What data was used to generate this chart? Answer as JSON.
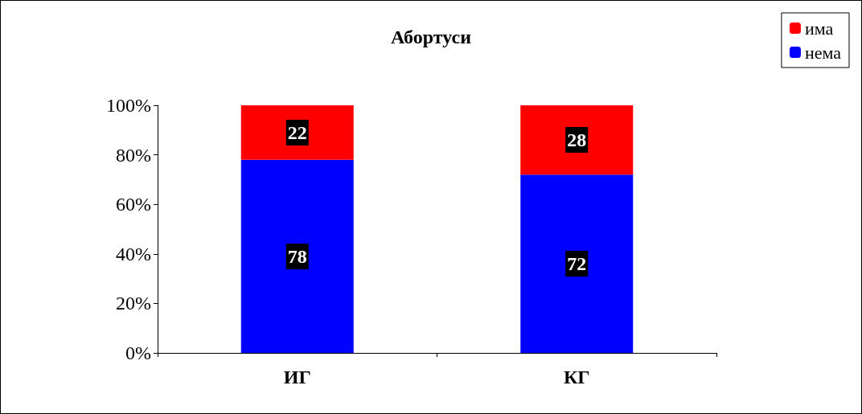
{
  "chart_data": {
    "type": "bar",
    "title": "Абортуси",
    "categories": [
      "ИГ",
      "КГ"
    ],
    "stacked": true,
    "data_labels": true,
    "legend": "top right",
    "ylim": [
      0,
      100
    ],
    "yticks": [
      {
        "value": 0,
        "label": "0%"
      },
      {
        "value": 20,
        "label": "20%"
      },
      {
        "value": 40,
        "label": "40%"
      },
      {
        "value": 60,
        "label": "60%"
      },
      {
        "value": 80,
        "label": "80%"
      },
      {
        "value": 100,
        "label": "100%"
      }
    ],
    "series": [
      {
        "name": "нема",
        "color": "#0000ff",
        "values": [
          78,
          72
        ]
      },
      {
        "name": "има",
        "color": "#ff0000",
        "values": [
          22,
          28
        ]
      }
    ]
  }
}
